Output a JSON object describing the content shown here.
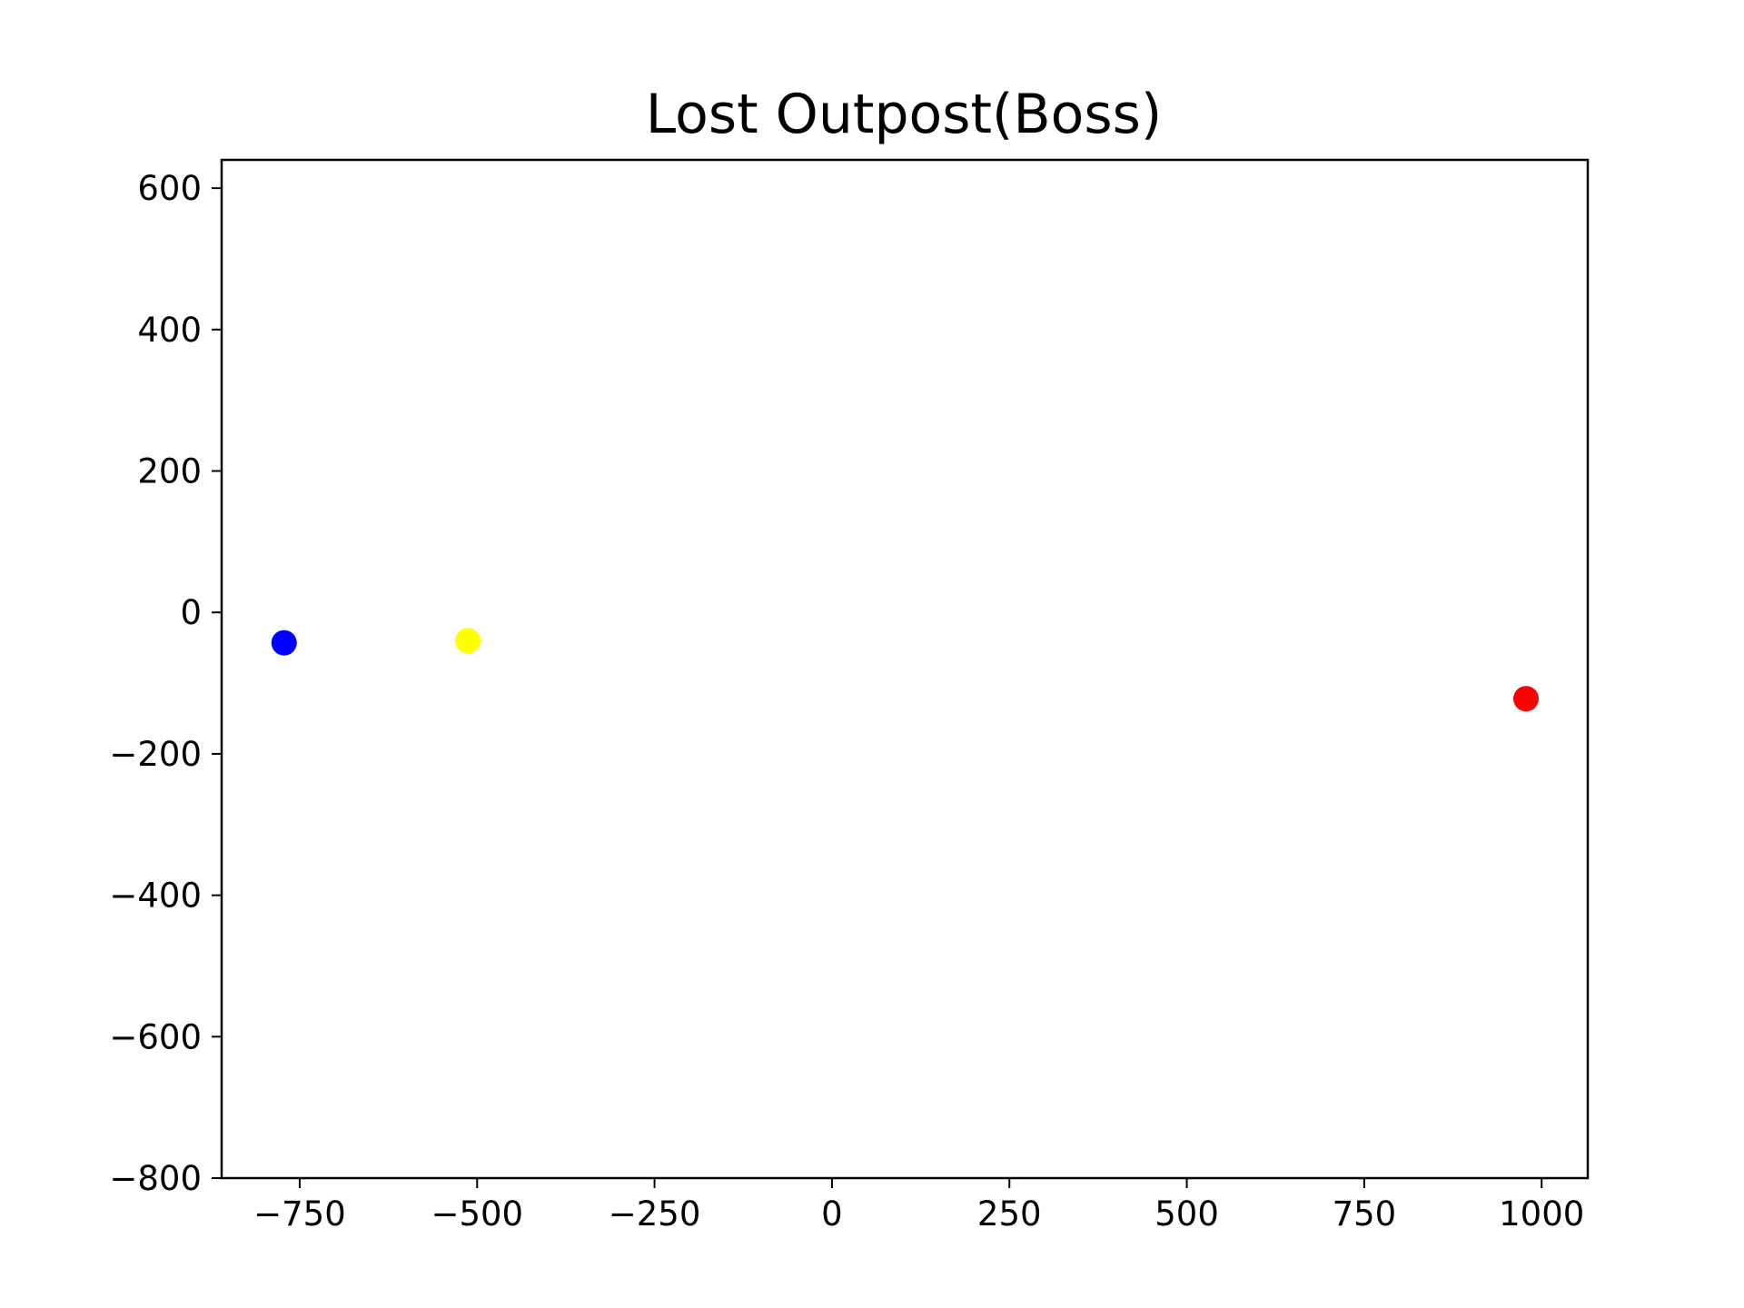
{
  "chart_data": {
    "type": "scatter",
    "title": "Lost Outpost(Boss)",
    "xlabel": "",
    "ylabel": "",
    "xlim": [
      -860,
      1065
    ],
    "ylim": [
      -800,
      640
    ],
    "x_ticks": [
      -750,
      -500,
      -250,
      0,
      250,
      500,
      750,
      1000
    ],
    "y_ticks": [
      -800,
      -600,
      -400,
      -200,
      0,
      200,
      400,
      600
    ],
    "x_tick_labels": [
      "−750",
      "−500",
      "−250",
      "0",
      "250",
      "500",
      "750",
      "1000"
    ],
    "y_tick_labels": [
      "−800",
      "−600",
      "−400",
      "−200",
      "0",
      "200",
      "400",
      "600"
    ],
    "grid": false,
    "points": [
      {
        "x": -772,
        "y": -43,
        "color": "#0000ff"
      },
      {
        "x": -513,
        "y": -40,
        "color": "#ffff00"
      },
      {
        "x": 978,
        "y": -122,
        "color": "#ff0000"
      }
    ]
  }
}
